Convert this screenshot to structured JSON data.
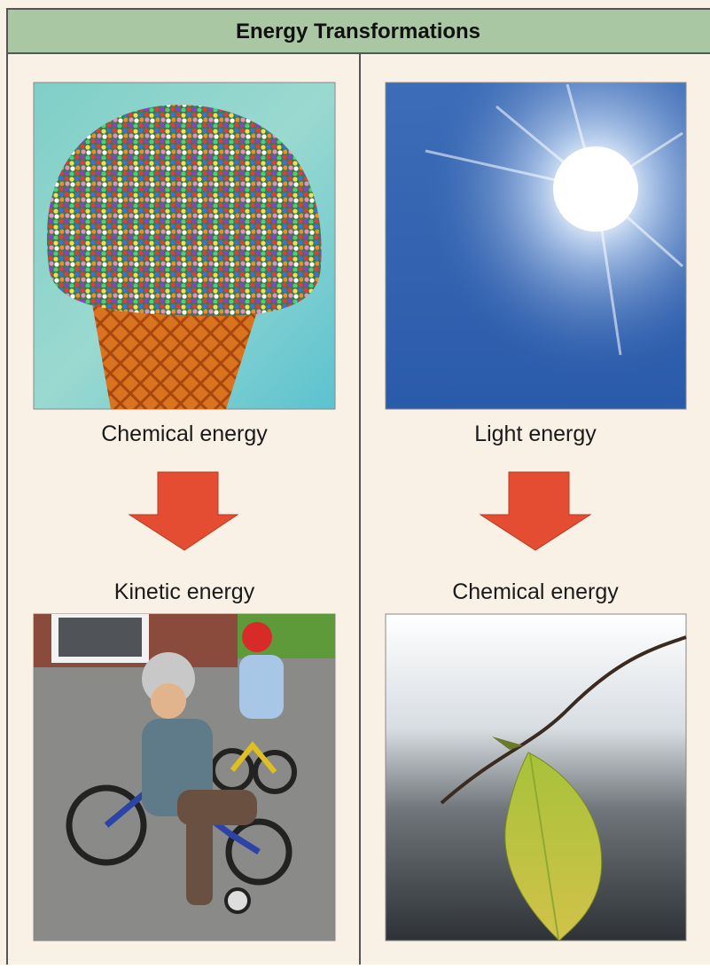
{
  "header": {
    "title": "Energy Transformations"
  },
  "panels": [
    {
      "top_label": "Chemical energy",
      "bottom_label": "Kinetic energy"
    },
    {
      "top_label": "Light energy",
      "bottom_label": "Chemical energy"
    }
  ]
}
